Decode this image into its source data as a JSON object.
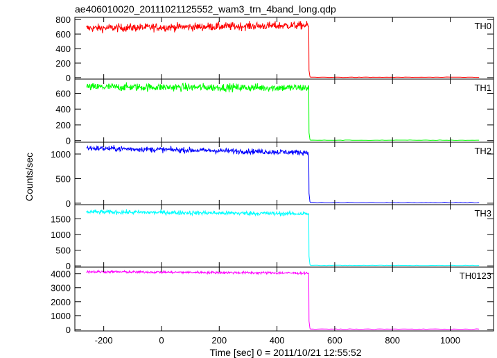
{
  "chart_data": {
    "type": "line",
    "title": "ae406010020_20111021125552_wam3_trn_4band_long.qdp",
    "xlabel": "Time [sec] 0 = 2011/10/21 12:55:52",
    "ylabel": "Counts/sec",
    "xlim": [
      -300,
      1150
    ],
    "x_ticks": [
      -200,
      0,
      200,
      400,
      600,
      800,
      1000
    ],
    "drop_time": 510,
    "data_start": -260,
    "data_end": 1100,
    "series": [
      {
        "name": "TH0",
        "color": "#ff0000",
        "ylim": [
          -20,
          830
        ],
        "y_ticks": [
          0,
          200,
          400,
          600,
          800
        ],
        "level_start": 680,
        "level_end": 720,
        "noise": 28,
        "level_after": 5
      },
      {
        "name": "TH1",
        "color": "#00ff00",
        "ylim": [
          -20,
          780
        ],
        "y_ticks": [
          0,
          200,
          400,
          600
        ],
        "level_start": 680,
        "level_end": 670,
        "noise": 25,
        "level_after": 5
      },
      {
        "name": "TH2",
        "color": "#0000ff",
        "ylim": [
          -30,
          1240
        ],
        "y_ticks": [
          0,
          500,
          1000
        ],
        "level_start": 1120,
        "level_end": 1030,
        "noise": 28,
        "level_after": 10
      },
      {
        "name": "TH3",
        "color": "#00ffff",
        "ylim": [
          -40,
          1950
        ],
        "y_ticks": [
          0,
          500,
          1000,
          1500
        ],
        "level_start": 1720,
        "level_end": 1660,
        "noise": 35,
        "level_after": 15
      },
      {
        "name": "TH0123",
        "color": "#ff00ff",
        "ylim": [
          -100,
          4480
        ],
        "y_ticks": [
          0,
          1000,
          2000,
          3000,
          4000
        ],
        "level_start": 4150,
        "level_end": 4050,
        "noise": 45,
        "level_after": 30
      }
    ]
  }
}
